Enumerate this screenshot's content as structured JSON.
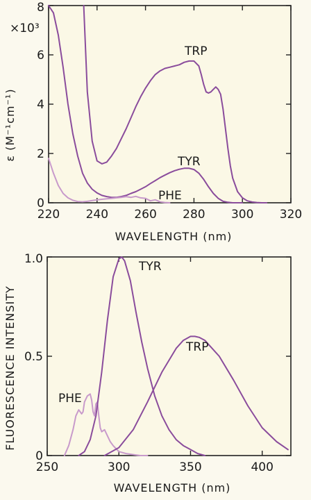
{
  "chart_data": [
    {
      "type": "line",
      "xlabel": "WAVELENGTH (nm)",
      "ylabel": "ε (M⁻¹cm⁻¹)",
      "y_multiplier": "×10³",
      "xlim": [
        220,
        320
      ],
      "ylim": [
        0,
        8
      ],
      "x_ticks": [
        "220",
        "240",
        "260",
        "280",
        "300",
        "320"
      ],
      "y_ticks": [
        "0",
        "2",
        "4",
        "6",
        "8"
      ],
      "grid": false,
      "series": [
        {
          "name": "TRP",
          "color": "#8a4c9c",
          "x": [
            234.5,
            236,
            238,
            240,
            242,
            244,
            246,
            248,
            250,
            252,
            254,
            256,
            258,
            260,
            262,
            264,
            266,
            268,
            270,
            272,
            274,
            276,
            278,
            280,
            282,
            283,
            284,
            285,
            286,
            287,
            288,
            289,
            290,
            291,
            292,
            293,
            294,
            295,
            296,
            298,
            300,
            302,
            304,
            306,
            308,
            310
          ],
          "y": [
            8.0,
            4.5,
            2.5,
            1.7,
            1.58,
            1.65,
            1.9,
            2.2,
            2.6,
            3.0,
            3.45,
            3.9,
            4.3,
            4.65,
            4.95,
            5.2,
            5.35,
            5.45,
            5.5,
            5.55,
            5.6,
            5.7,
            5.75,
            5.75,
            5.55,
            5.2,
            4.8,
            4.5,
            4.45,
            4.5,
            4.6,
            4.7,
            4.6,
            4.4,
            3.8,
            3.0,
            2.2,
            1.5,
            1.0,
            0.45,
            0.2,
            0.08,
            0.03,
            0.01,
            0.0,
            0.0
          ]
        },
        {
          "name": "TYR",
          "color": "#8a4c9c",
          "x": [
            220,
            222,
            224,
            226,
            228,
            230,
            232,
            234,
            236,
            238,
            240,
            242,
            244,
            246,
            248,
            250,
            252,
            254,
            256,
            258,
            260,
            262,
            264,
            266,
            268,
            270,
            272,
            274,
            276,
            278,
            280,
            282,
            284,
            286,
            288,
            290,
            292,
            294,
            296,
            298,
            300
          ],
          "y": [
            8.0,
            7.7,
            6.8,
            5.5,
            4.0,
            2.8,
            1.9,
            1.2,
            0.8,
            0.55,
            0.4,
            0.3,
            0.25,
            0.22,
            0.22,
            0.25,
            0.3,
            0.38,
            0.45,
            0.55,
            0.65,
            0.78,
            0.9,
            1.02,
            1.12,
            1.22,
            1.3,
            1.36,
            1.4,
            1.4,
            1.35,
            1.2,
            0.95,
            0.65,
            0.38,
            0.18,
            0.06,
            0.02,
            0.0,
            0.0,
            0.0
          ]
        },
        {
          "name": "PHE",
          "color": "#c89acb",
          "x": [
            220,
            222,
            224,
            226,
            228,
            230,
            232,
            234,
            236,
            238,
            240,
            242,
            244,
            246,
            248,
            250,
            252,
            254,
            256,
            258,
            260,
            262,
            264,
            266,
            268,
            270
          ],
          "y": [
            1.8,
            1.2,
            0.7,
            0.38,
            0.2,
            0.1,
            0.05,
            0.04,
            0.06,
            0.09,
            0.12,
            0.14,
            0.16,
            0.18,
            0.2,
            0.22,
            0.25,
            0.22,
            0.26,
            0.2,
            0.18,
            0.08,
            0.12,
            0.04,
            0.01,
            0.0
          ]
        }
      ]
    },
    {
      "type": "line",
      "xlabel": "WAVELENGTH (nm)",
      "ylabel": "FLUORESCENCE INTENSITY",
      "xlim": [
        250,
        420
      ],
      "ylim": [
        0,
        1.0
      ],
      "x_ticks": [
        "250",
        "300",
        "350",
        "400"
      ],
      "y_ticks": [
        "0",
        "0.5",
        "1.0"
      ],
      "grid": false,
      "series": [
        {
          "name": "PHE",
          "color": "#c89acb",
          "x": [
            262,
            265,
            268,
            270,
            272,
            274,
            275,
            276,
            278,
            280,
            281,
            282,
            283,
            284,
            285,
            286,
            287,
            288,
            290,
            292,
            294,
            296,
            298,
            300,
            305,
            310,
            315,
            320
          ],
          "y": [
            0.0,
            0.05,
            0.13,
            0.2,
            0.23,
            0.21,
            0.22,
            0.27,
            0.3,
            0.31,
            0.28,
            0.22,
            0.2,
            0.26,
            0.27,
            0.2,
            0.14,
            0.12,
            0.13,
            0.1,
            0.07,
            0.05,
            0.035,
            0.02,
            0.01,
            0.005,
            0.0,
            0.0
          ]
        },
        {
          "name": "TYR",
          "color": "#8a4c9c",
          "x": [
            272,
            276,
            280,
            284,
            288,
            292,
            296,
            300,
            302,
            304,
            308,
            312,
            316,
            320,
            325,
            330,
            335,
            340,
            345,
            350,
            355,
            360
          ],
          "y": [
            0.0,
            0.02,
            0.08,
            0.2,
            0.42,
            0.68,
            0.9,
            0.99,
            1.0,
            0.98,
            0.88,
            0.72,
            0.57,
            0.44,
            0.3,
            0.2,
            0.13,
            0.08,
            0.05,
            0.03,
            0.01,
            0.0
          ]
        },
        {
          "name": "TRP",
          "color": "#8a4c9c",
          "x": [
            290,
            300,
            310,
            320,
            330,
            340,
            345,
            350,
            353,
            356,
            360,
            370,
            380,
            390,
            400,
            410,
            418
          ],
          "y": [
            0.0,
            0.04,
            0.13,
            0.27,
            0.42,
            0.54,
            0.58,
            0.6,
            0.6,
            0.595,
            0.58,
            0.5,
            0.38,
            0.25,
            0.14,
            0.07,
            0.03
          ]
        }
      ]
    }
  ]
}
